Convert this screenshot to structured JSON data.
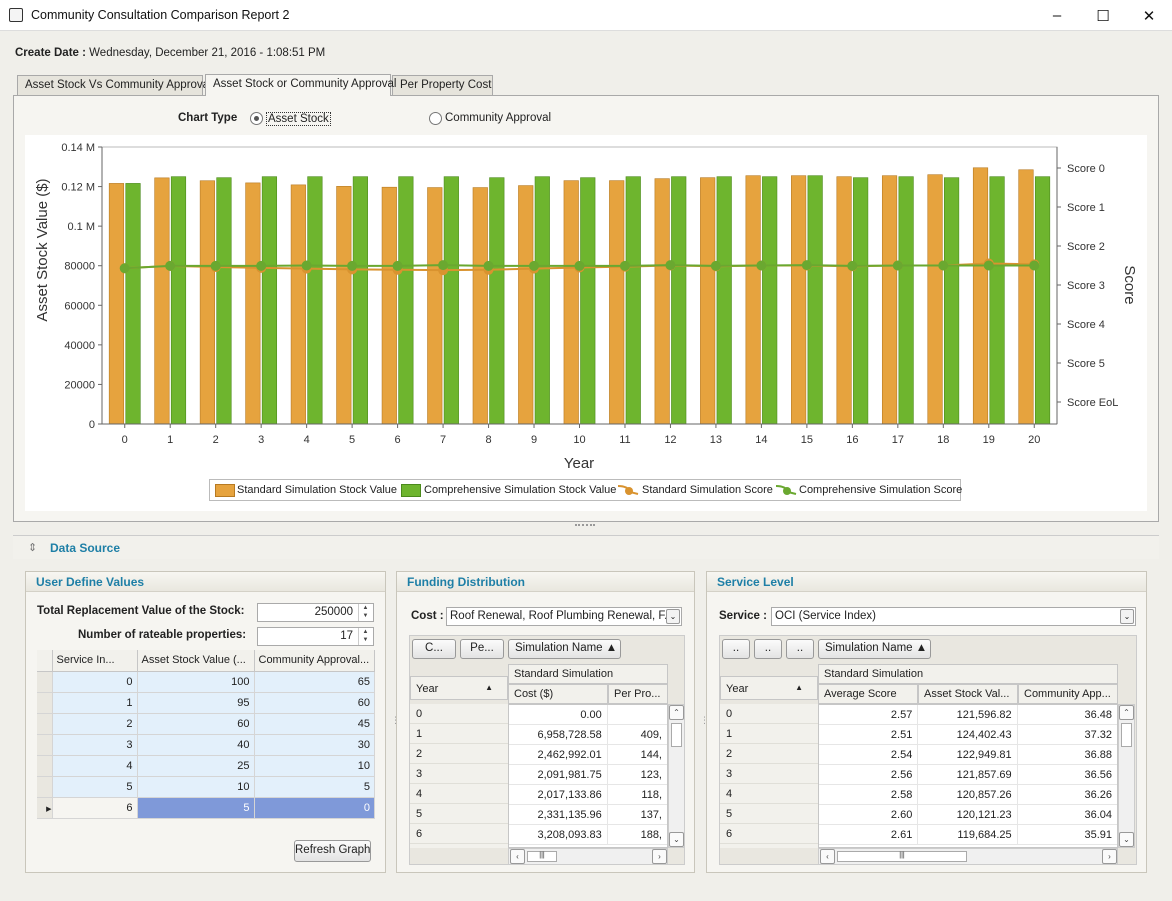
{
  "window": {
    "title": "Community Consultation Comparison Report 2"
  },
  "header": {
    "create_date_label": "Create Date :",
    "create_date_value": "Wednesday, December 21, 2016 - 1:08:51 PM"
  },
  "tabs": [
    {
      "label": "Asset Stock Vs Community Approval",
      "active": false
    },
    {
      "label": "Asset Stock or Community Approval",
      "active": true
    },
    {
      "label": "Per Property Cost",
      "active": false
    }
  ],
  "chart_type": {
    "label": "Chart Type",
    "options": [
      "Asset Stock",
      "Community Approval"
    ],
    "selected": "Asset Stock"
  },
  "chart_data": {
    "type": "bar",
    "xlabel": "Year",
    "ylabel": "Asset Stock Value ($)",
    "y2label": "Score",
    "categories": [
      "0",
      "1",
      "2",
      "3",
      "4",
      "5",
      "6",
      "7",
      "8",
      "9",
      "10",
      "11",
      "12",
      "13",
      "14",
      "15",
      "16",
      "17",
      "18",
      "19",
      "20"
    ],
    "ylim": [
      0,
      140000
    ],
    "yticks": [
      "0",
      "20000",
      "40000",
      "60000",
      "80000",
      "0.1 M",
      "0.12 M",
      "0.14 M"
    ],
    "y2ticks": [
      "Score 0",
      "Score 1",
      "Score 2",
      "Score 3",
      "Score 4",
      "Score 5",
      "Score EoL"
    ],
    "series": [
      {
        "name": "Standard Simulation Stock Value",
        "kind": "bar",
        "color": "#e6a33e",
        "values": [
          121597,
          124402,
          122950,
          121858,
          120857,
          120121,
          119684,
          119500,
          119500,
          120500,
          123000,
          123000,
          124000,
          124500,
          125500,
          125500,
          125000,
          125500,
          126000,
          129500,
          128500
        ]
      },
      {
        "name": "Comprehensive Simulation Stock Value",
        "kind": "bar",
        "color": "#6eb52e",
        "values": [
          121597,
          125000,
          124500,
          125000,
          125000,
          125000,
          125000,
          125000,
          124500,
          125000,
          124500,
          125000,
          125000,
          125000,
          125000,
          125500,
          124500,
          125000,
          124500,
          125000,
          125000
        ]
      },
      {
        "name": "Standard Simulation Score",
        "kind": "line",
        "color": "#d9932f",
        "values": [
          2.57,
          2.51,
          2.54,
          2.56,
          2.58,
          2.6,
          2.61,
          2.62,
          2.61,
          2.58,
          2.55,
          2.53,
          2.5,
          2.52,
          2.5,
          2.5,
          2.52,
          2.5,
          2.5,
          2.45,
          2.47
        ]
      },
      {
        "name": "Comprehensive Simulation Score",
        "kind": "line",
        "color": "#6aa830",
        "values": [
          2.57,
          2.51,
          2.51,
          2.51,
          2.5,
          2.51,
          2.51,
          2.49,
          2.51,
          2.51,
          2.51,
          2.51,
          2.49,
          2.51,
          2.5,
          2.49,
          2.51,
          2.5,
          2.5,
          2.5,
          2.5
        ]
      }
    ],
    "legend": "bottom"
  },
  "data_source": {
    "title": "Data Source"
  },
  "user_define": {
    "title": "User Define Values",
    "total_label": "Total Replacement Value of the Stock:",
    "total_value": "250000",
    "props_label": "Number of rateable properties:",
    "props_value": "17",
    "columns": [
      "Service In...",
      "Asset Stock Value (...",
      "Community Approval..."
    ],
    "rows": [
      [
        "0",
        "100",
        "65"
      ],
      [
        "1",
        "95",
        "60"
      ],
      [
        "2",
        "60",
        "45"
      ],
      [
        "3",
        "40",
        "30"
      ],
      [
        "4",
        "25",
        "10"
      ],
      [
        "5",
        "10",
        "5"
      ],
      [
        "6",
        "5",
        "0"
      ]
    ],
    "refresh_label": "Refresh Graph"
  },
  "funding": {
    "title": "Funding Distribution",
    "cost_label": "Cost :",
    "cost_value": "Roof Renewal, Roof Plumbing Renewal, F...",
    "group_btns": [
      "C...",
      "Pe...",
      "Simulation Name"
    ],
    "band": "Standard Simulation",
    "year_header": "Year",
    "columns": [
      "Cost ($)",
      "Per Pro..."
    ],
    "rows": [
      [
        "0",
        "0.00",
        ""
      ],
      [
        "1",
        "6,958,728.58",
        "409,"
      ],
      [
        "2",
        "2,462,992.01",
        "144,"
      ],
      [
        "3",
        "2,091,981.75",
        "123,"
      ],
      [
        "4",
        "2,017,133.86",
        "118,"
      ],
      [
        "5",
        "2,331,135.96",
        "137,"
      ],
      [
        "6",
        "3,208,093.83",
        "188,"
      ]
    ]
  },
  "service": {
    "title": "Service Level",
    "service_label": "Service :",
    "service_value": "OCI (Service Index)",
    "group_btns": [
      "..",
      "..",
      "..",
      "Simulation Name"
    ],
    "band": "Standard Simulation",
    "year_header": "Year",
    "columns": [
      "Average Score",
      "Asset Stock Val...",
      "Community App..."
    ],
    "rows": [
      [
        "0",
        "2.57",
        "121,596.82",
        "36.48"
      ],
      [
        "1",
        "2.51",
        "124,402.43",
        "37.32"
      ],
      [
        "2",
        "2.54",
        "122,949.81",
        "36.88"
      ],
      [
        "3",
        "2.56",
        "121,857.69",
        "36.56"
      ],
      [
        "4",
        "2.58",
        "120,857.26",
        "36.26"
      ],
      [
        "5",
        "2.60",
        "120,121.23",
        "36.04"
      ],
      [
        "6",
        "2.61",
        "119,684.25",
        "35.91"
      ]
    ]
  }
}
